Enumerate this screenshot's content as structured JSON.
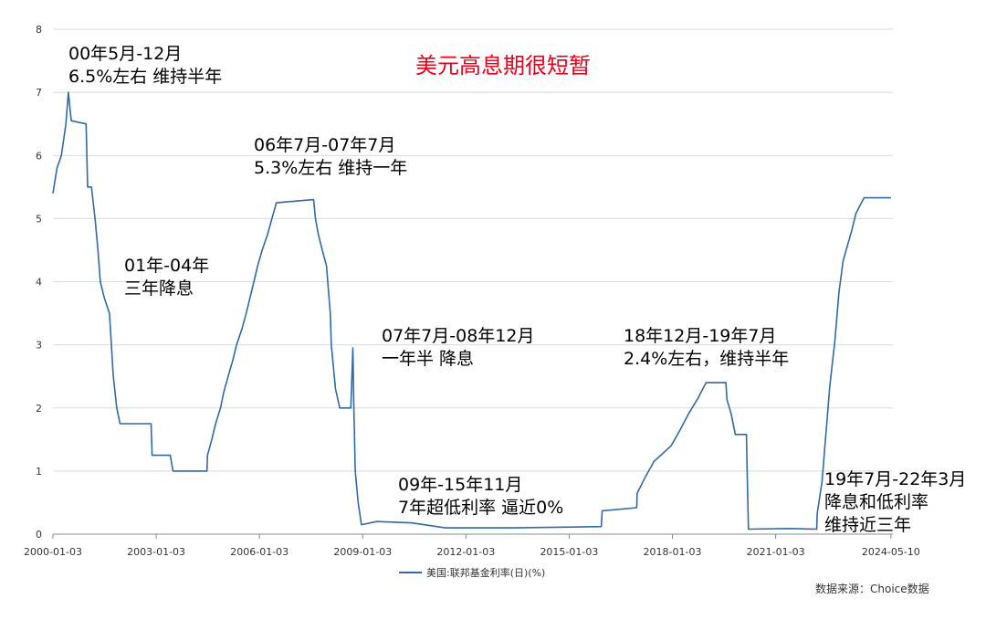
{
  "chart_data": {
    "type": "line",
    "title": "美元高息期很短暂",
    "ylim": [
      0,
      8
    ],
    "yticks": [
      "0",
      "1",
      "2",
      "3",
      "4",
      "5",
      "6",
      "7",
      "8"
    ],
    "xlim": [
      "2000-01-03",
      "2024-05-31"
    ],
    "xticks": [
      "2000-01-03",
      "2003-01-03",
      "2006-01-03",
      "2009-01-03",
      "2012-01-03",
      "2015-01-03",
      "2018-01-03",
      "2021-01-03",
      "2024-05-10"
    ],
    "grid": "horizontal",
    "legend": "bottom-center",
    "source": "数据来源：Choice数据",
    "series": [
      {
        "name": "美国:联邦基金利率(日)(%)",
        "color": "#2f6aa3",
        "points": [
          [
            "2000-01-03",
            5.4
          ],
          [
            "2000-02-15",
            5.8
          ],
          [
            "2000-04-01",
            6.0
          ],
          [
            "2000-05-20",
            6.5
          ],
          [
            "2000-06-15",
            7.0
          ],
          [
            "2000-07-15",
            6.55
          ],
          [
            "2000-12-20",
            6.5
          ],
          [
            "2001-01-05",
            5.5
          ],
          [
            "2001-02-15",
            5.5
          ],
          [
            "2001-03-25",
            5.0
          ],
          [
            "2001-04-25",
            4.5
          ],
          [
            "2001-05-20",
            4.0
          ],
          [
            "2001-06-30",
            3.75
          ],
          [
            "2001-08-25",
            3.5
          ],
          [
            "2001-10-05",
            2.5
          ],
          [
            "2001-11-10",
            2.0
          ],
          [
            "2001-12-15",
            1.75
          ],
          [
            "2002-06-01",
            1.75
          ],
          [
            "2002-11-10",
            1.75
          ],
          [
            "2002-11-20",
            1.25
          ],
          [
            "2003-06-01",
            1.25
          ],
          [
            "2003-06-30",
            1.0
          ],
          [
            "2004-06-25",
            1.0
          ],
          [
            "2004-07-01",
            1.25
          ],
          [
            "2004-08-15",
            1.5
          ],
          [
            "2004-09-25",
            1.75
          ],
          [
            "2004-11-15",
            2.0
          ],
          [
            "2004-12-20",
            2.25
          ],
          [
            "2005-02-05",
            2.5
          ],
          [
            "2005-03-25",
            2.75
          ],
          [
            "2005-05-05",
            3.0
          ],
          [
            "2005-07-01",
            3.25
          ],
          [
            "2005-08-15",
            3.5
          ],
          [
            "2005-09-25",
            3.75
          ],
          [
            "2005-11-05",
            4.0
          ],
          [
            "2005-12-15",
            4.25
          ],
          [
            "2006-02-01",
            4.5
          ],
          [
            "2006-03-30",
            4.75
          ],
          [
            "2006-05-15",
            5.0
          ],
          [
            "2006-07-01",
            5.25
          ],
          [
            "2007-08-01",
            5.3
          ],
          [
            "2007-08-20",
            5.0
          ],
          [
            "2007-09-20",
            4.75
          ],
          [
            "2007-11-01",
            4.5
          ],
          [
            "2007-12-15",
            4.25
          ],
          [
            "2008-01-25",
            3.5
          ],
          [
            "2008-02-05",
            3.0
          ],
          [
            "2008-03-20",
            2.3
          ],
          [
            "2008-05-05",
            2.0
          ],
          [
            "2008-08-30",
            2.0
          ],
          [
            "2008-09-20",
            2.95
          ],
          [
            "2008-10-01",
            2.0
          ],
          [
            "2008-10-15",
            1.0
          ],
          [
            "2008-11-15",
            0.5
          ],
          [
            "2008-12-20",
            0.15
          ],
          [
            "2009-06-01",
            0.2
          ],
          [
            "2010-06-01",
            0.18
          ],
          [
            "2011-06-01",
            0.1
          ],
          [
            "2013-06-01",
            0.1
          ],
          [
            "2015-12-10",
            0.12
          ],
          [
            "2015-12-20",
            0.37
          ],
          [
            "2016-12-20",
            0.42
          ],
          [
            "2016-12-25",
            0.65
          ],
          [
            "2017-03-20",
            0.9
          ],
          [
            "2017-06-20",
            1.15
          ],
          [
            "2017-12-20",
            1.4
          ],
          [
            "2018-03-25",
            1.65
          ],
          [
            "2018-06-20",
            1.9
          ],
          [
            "2018-09-30",
            2.15
          ],
          [
            "2018-12-25",
            2.4
          ],
          [
            "2019-07-25",
            2.4
          ],
          [
            "2019-08-05",
            2.13
          ],
          [
            "2019-09-20",
            1.9
          ],
          [
            "2019-11-01",
            1.58
          ],
          [
            "2020-02-28",
            1.58
          ],
          [
            "2020-03-05",
            1.05
          ],
          [
            "2020-03-20",
            0.08
          ],
          [
            "2021-06-01",
            0.09
          ],
          [
            "2022-03-15",
            0.08
          ],
          [
            "2022-03-20",
            0.33
          ],
          [
            "2022-05-10",
            0.83
          ],
          [
            "2022-06-20",
            1.58
          ],
          [
            "2022-07-30",
            2.33
          ],
          [
            "2022-09-25",
            3.08
          ],
          [
            "2022-11-05",
            3.83
          ],
          [
            "2022-12-20",
            4.33
          ],
          [
            "2023-02-05",
            4.58
          ],
          [
            "2023-03-25",
            4.83
          ],
          [
            "2023-05-05",
            5.08
          ],
          [
            "2023-07-30",
            5.33
          ],
          [
            "2024-05-10",
            5.33
          ]
        ]
      }
    ],
    "annotations": [
      {
        "lines": [
          "00年5月-12月",
          "6.5%左右 维持半年"
        ]
      },
      {
        "lines": [
          "01年-04年",
          "三年降息"
        ]
      },
      {
        "lines": [
          "06年7月-07年7月",
          "5.3%左右 维持一年"
        ]
      },
      {
        "lines": [
          "07年7月-08年12月",
          "一年半 降息"
        ]
      },
      {
        "lines": [
          "09年-15年11月",
          "7年超低利率 逼近0%"
        ]
      },
      {
        "lines": [
          "18年12月-19年7月",
          "2.4%左右，维持半年"
        ]
      },
      {
        "lines": [
          "19年7月-22年3月",
          "降息和低利率",
          "维持近三年"
        ]
      }
    ]
  }
}
